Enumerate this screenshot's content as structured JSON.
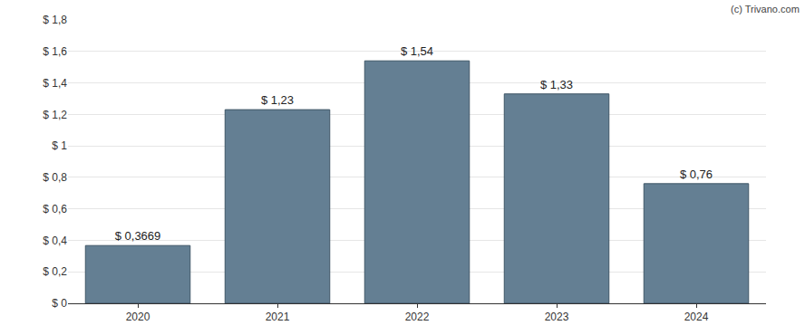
{
  "chart_data": {
    "type": "bar",
    "categories": [
      "2020",
      "2021",
      "2022",
      "2023",
      "2024"
    ],
    "values": [
      0.3669,
      1.23,
      1.54,
      1.33,
      0.76
    ],
    "value_labels": [
      "$ 0,3669",
      "$ 1,23",
      "$ 1,54",
      "$ 1,33",
      "$ 0,76"
    ],
    "data_labels": true,
    "color": "#647f93",
    "ylim": [
      0,
      1.8
    ],
    "yticks": [
      {
        "value": 0,
        "label": "$ 0"
      },
      {
        "value": 0.2,
        "label": "$ 0,2"
      },
      {
        "value": 0.4,
        "label": "$ 0,4"
      },
      {
        "value": 0.6,
        "label": "$ 0,6"
      },
      {
        "value": 0.8,
        "label": "$ 0,8"
      },
      {
        "value": 1,
        "label": "$ 1"
      },
      {
        "value": 1.2,
        "label": "$ 1,2"
      },
      {
        "value": 1.4,
        "label": "$ 1,4"
      },
      {
        "value": 1.6,
        "label": "$ 1,6"
      },
      {
        "value": 1.8,
        "label": "$ 1,8"
      }
    ],
    "grid": true,
    "annotations": [
      "(c) Trivano.com"
    ]
  }
}
